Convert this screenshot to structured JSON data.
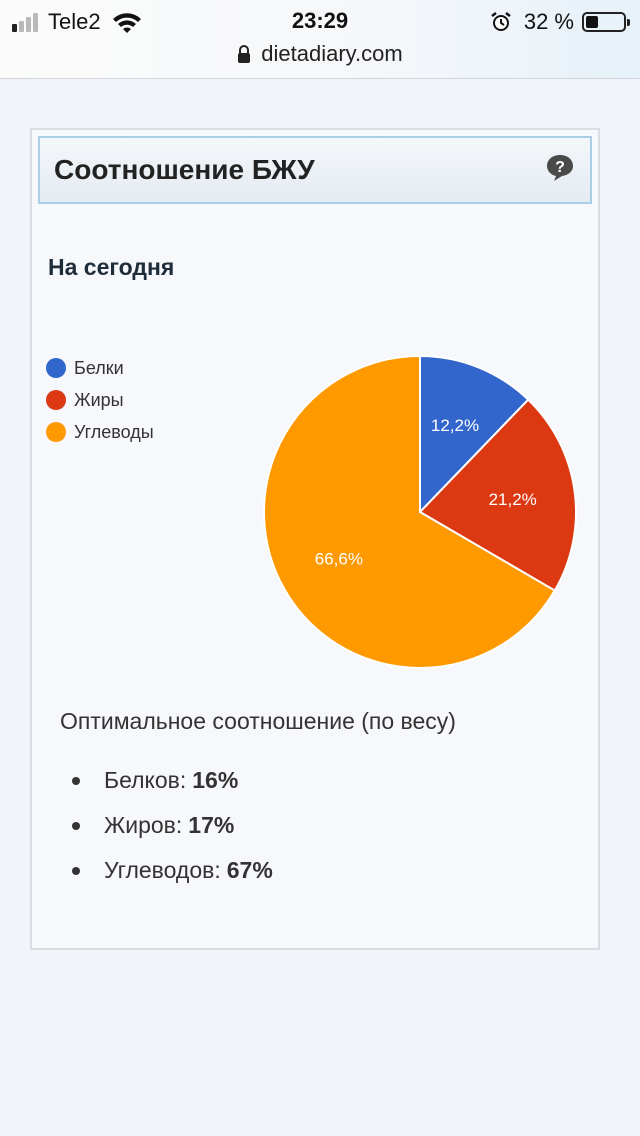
{
  "status_bar": {
    "carrier": "Tele2",
    "time": "23:29",
    "battery_percent": "32 %",
    "battery_level": 0.32,
    "signal_bars_active": 1,
    "signal_bars_total": 4
  },
  "browser": {
    "url": "dietadiary.com"
  },
  "card": {
    "title": "Соотношение БЖУ",
    "subtitle": "На сегодня"
  },
  "chart_data": {
    "type": "pie",
    "categories": [
      "Белки",
      "Жиры",
      "Углеводы"
    ],
    "values": [
      12.2,
      21.2,
      66.6
    ],
    "labels": [
      "12,2%",
      "21,2%",
      "66,6%"
    ],
    "colors": [
      "#3366cc",
      "#dc3912",
      "#ff9900"
    ],
    "title": "",
    "legend": "left"
  },
  "optimal": {
    "title": "Оптимальное соотношение (по весу)",
    "items": [
      {
        "label": "Белков:",
        "value": "16%"
      },
      {
        "label": "Жиров:",
        "value": "17%"
      },
      {
        "label": "Углеводов:",
        "value": "67%"
      }
    ]
  },
  "icons": {
    "help": "help-icon",
    "lock": "lock-icon",
    "wifi": "wifi-icon",
    "alarm": "alarm-icon"
  }
}
